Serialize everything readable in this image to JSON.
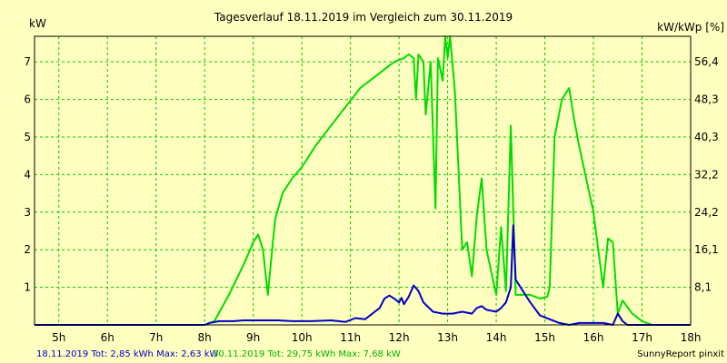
{
  "chart_data": {
    "type": "line",
    "title": "Tagesverlauf 18.11.2019 im Vergleich zum 30.11.2019",
    "ylabel_left": "kW",
    "ylabel_right": "kW/kWp [%]",
    "x_ticks": [
      "5h",
      "6h",
      "7h",
      "8h",
      "9h",
      "10h",
      "11h",
      "12h",
      "13h",
      "14h",
      "15h",
      "16h",
      "17h",
      "18h"
    ],
    "xlim": [
      4.5,
      18.0
    ],
    "ylim": [
      0,
      7.68
    ],
    "y_ticks_left": [
      "1",
      "2",
      "3",
      "4",
      "5",
      "6",
      "7"
    ],
    "y_ticks_right": [
      "8,1",
      "16,1",
      "24,2",
      "32,2",
      "40,3",
      "48,3",
      "56,4"
    ],
    "grid": true,
    "series": [
      {
        "name": "18.11.2019",
        "color": "#0000c8",
        "points": [
          [
            4.5,
            0
          ],
          [
            8.0,
            0
          ],
          [
            8.1,
            0.05
          ],
          [
            8.3,
            0.1
          ],
          [
            8.6,
            0.1
          ],
          [
            8.8,
            0.12
          ],
          [
            9.0,
            0.12
          ],
          [
            9.5,
            0.12
          ],
          [
            9.8,
            0.1
          ],
          [
            10.2,
            0.1
          ],
          [
            10.6,
            0.12
          ],
          [
            10.9,
            0.08
          ],
          [
            11.1,
            0.18
          ],
          [
            11.3,
            0.15
          ],
          [
            11.5,
            0.35
          ],
          [
            11.6,
            0.45
          ],
          [
            11.7,
            0.7
          ],
          [
            11.8,
            0.78
          ],
          [
            11.9,
            0.7
          ],
          [
            12.0,
            0.6
          ],
          [
            12.05,
            0.72
          ],
          [
            12.1,
            0.55
          ],
          [
            12.2,
            0.75
          ],
          [
            12.3,
            1.05
          ],
          [
            12.4,
            0.9
          ],
          [
            12.5,
            0.6
          ],
          [
            12.7,
            0.35
          ],
          [
            12.9,
            0.3
          ],
          [
            13.1,
            0.3
          ],
          [
            13.3,
            0.35
          ],
          [
            13.5,
            0.3
          ],
          [
            13.6,
            0.45
          ],
          [
            13.7,
            0.5
          ],
          [
            13.8,
            0.4
          ],
          [
            14.0,
            0.35
          ],
          [
            14.1,
            0.45
          ],
          [
            14.2,
            0.6
          ],
          [
            14.3,
            1.0
          ],
          [
            14.35,
            2.65
          ],
          [
            14.4,
            1.2
          ],
          [
            14.5,
            1.0
          ],
          [
            14.7,
            0.6
          ],
          [
            14.9,
            0.25
          ],
          [
            15.1,
            0.15
          ],
          [
            15.3,
            0.05
          ],
          [
            15.5,
            0.0
          ],
          [
            15.7,
            0.05
          ],
          [
            15.9,
            0.05
          ],
          [
            16.2,
            0.05
          ],
          [
            16.4,
            0.0
          ],
          [
            16.5,
            0.3
          ],
          [
            16.6,
            0.1
          ],
          [
            16.7,
            0.0
          ],
          [
            18.0,
            0.0
          ]
        ]
      },
      {
        "name": "30.11.2019",
        "color": "#00dc00",
        "points": [
          [
            4.5,
            0
          ],
          [
            8.0,
            0
          ],
          [
            8.2,
            0.1
          ],
          [
            8.5,
            0.8
          ],
          [
            8.8,
            1.6
          ],
          [
            9.0,
            2.2
          ],
          [
            9.1,
            2.4
          ],
          [
            9.2,
            2.0
          ],
          [
            9.3,
            0.8
          ],
          [
            9.45,
            2.8
          ],
          [
            9.6,
            3.5
          ],
          [
            9.8,
            3.9
          ],
          [
            10.0,
            4.2
          ],
          [
            10.3,
            4.8
          ],
          [
            10.6,
            5.3
          ],
          [
            10.9,
            5.8
          ],
          [
            11.2,
            6.3
          ],
          [
            11.5,
            6.6
          ],
          [
            11.7,
            6.8
          ],
          [
            11.9,
            7.0
          ],
          [
            12.1,
            7.1
          ],
          [
            12.2,
            7.2
          ],
          [
            12.3,
            7.1
          ],
          [
            12.35,
            6.0
          ],
          [
            12.4,
            7.2
          ],
          [
            12.5,
            7.0
          ],
          [
            12.55,
            5.6
          ],
          [
            12.65,
            7.0
          ],
          [
            12.75,
            3.1
          ],
          [
            12.8,
            7.1
          ],
          [
            12.9,
            6.5
          ],
          [
            12.95,
            7.68
          ],
          [
            13.0,
            7.1
          ],
          [
            13.05,
            7.68
          ],
          [
            13.15,
            6.2
          ],
          [
            13.3,
            2.0
          ],
          [
            13.4,
            2.2
          ],
          [
            13.5,
            1.3
          ],
          [
            13.6,
            2.9
          ],
          [
            13.7,
            3.9
          ],
          [
            13.8,
            2.0
          ],
          [
            14.0,
            0.8
          ],
          [
            14.1,
            2.6
          ],
          [
            14.2,
            0.9
          ],
          [
            14.3,
            5.3
          ],
          [
            14.4,
            0.8
          ],
          [
            14.7,
            0.8
          ],
          [
            14.9,
            0.7
          ],
          [
            15.05,
            0.75
          ],
          [
            15.1,
            1.0
          ],
          [
            15.2,
            5.0
          ],
          [
            15.35,
            6.0
          ],
          [
            15.5,
            6.3
          ],
          [
            15.6,
            5.5
          ],
          [
            15.7,
            4.8
          ],
          [
            15.8,
            4.2
          ],
          [
            16.0,
            3.0
          ],
          [
            16.2,
            1.0
          ],
          [
            16.3,
            2.3
          ],
          [
            16.4,
            2.2
          ],
          [
            16.5,
            0.3
          ],
          [
            16.6,
            0.65
          ],
          [
            16.8,
            0.3
          ],
          [
            17.0,
            0.1
          ],
          [
            17.2,
            0.0
          ],
          [
            18.0,
            0.0
          ]
        ]
      }
    ],
    "footer": {
      "left_blue": "18.11.2019 Tot: 2,85 kWh Max: 2,63 kW",
      "left_green": "30.11.2019 Tot: 29,75 kWh Max: 7,68 kW",
      "right": "SunnyReport pinxit"
    }
  }
}
